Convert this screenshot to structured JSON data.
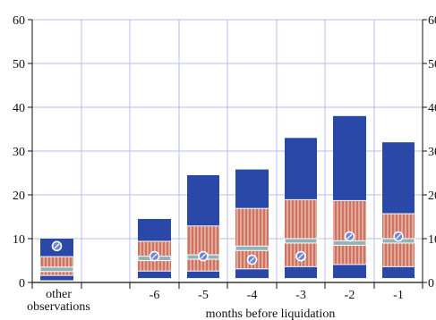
{
  "chart_data": {
    "type": "bar",
    "title": "",
    "xlabel": "months before liquidation",
    "ylabel": "",
    "ylim": [
      0,
      60
    ],
    "yticks": [
      "0",
      "10",
      "20",
      "30",
      "40",
      "50",
      "60"
    ],
    "grid": true,
    "categories": [
      "other observations",
      "",
      "-6",
      "-5",
      "-4",
      "-3",
      "-2",
      "-1"
    ],
    "x_label_lines": {
      "other": [
        "other",
        "observations"
      ]
    },
    "boxes": [
      {
        "category": "other observations",
        "whisker_low": 0.5,
        "p25": 1.5,
        "p50": 3.0,
        "p75": 6.0,
        "whisker_high": 10.0,
        "mean": 8.3
      },
      {
        "category": "",
        "whisker_low": null,
        "p25": null,
        "p50": null,
        "p75": null,
        "whisker_high": null,
        "mean": null
      },
      {
        "category": "-6",
        "whisker_low": 1.0,
        "p25": 2.5,
        "p50": 5.5,
        "p75": 9.5,
        "whisker_high": 14.5,
        "mean": 6.0
      },
      {
        "category": "-5",
        "whisker_low": 1.0,
        "p25": 2.5,
        "p50": 5.8,
        "p75": 13.0,
        "whisker_high": 24.5,
        "mean": 6.0
      },
      {
        "category": "-4",
        "whisker_low": 1.0,
        "p25": 3.0,
        "p50": 7.8,
        "p75": 17.0,
        "whisker_high": 25.8,
        "mean": 5.2
      },
      {
        "category": "-3",
        "whisker_low": 1.0,
        "p25": 3.5,
        "p50": 9.5,
        "p75": 19.0,
        "whisker_high": 33.0,
        "mean": 6.0
      },
      {
        "category": "-2",
        "whisker_low": 1.0,
        "p25": 4.0,
        "p50": 9.0,
        "p75": 18.8,
        "whisker_high": 38.0,
        "mean": 10.5
      },
      {
        "category": "-1",
        "whisker_low": 1.0,
        "p25": 3.5,
        "p50": 9.5,
        "p75": 15.8,
        "whisker_high": 32.0,
        "mean": 10.5
      }
    ],
    "colors": {
      "outer": "#2A48A8",
      "inner": "#E3A893",
      "inner_stripe": "#B43C38",
      "median": "#8FB4BA",
      "marker": "#6F86D6",
      "grid": "#B8BCEA"
    }
  }
}
